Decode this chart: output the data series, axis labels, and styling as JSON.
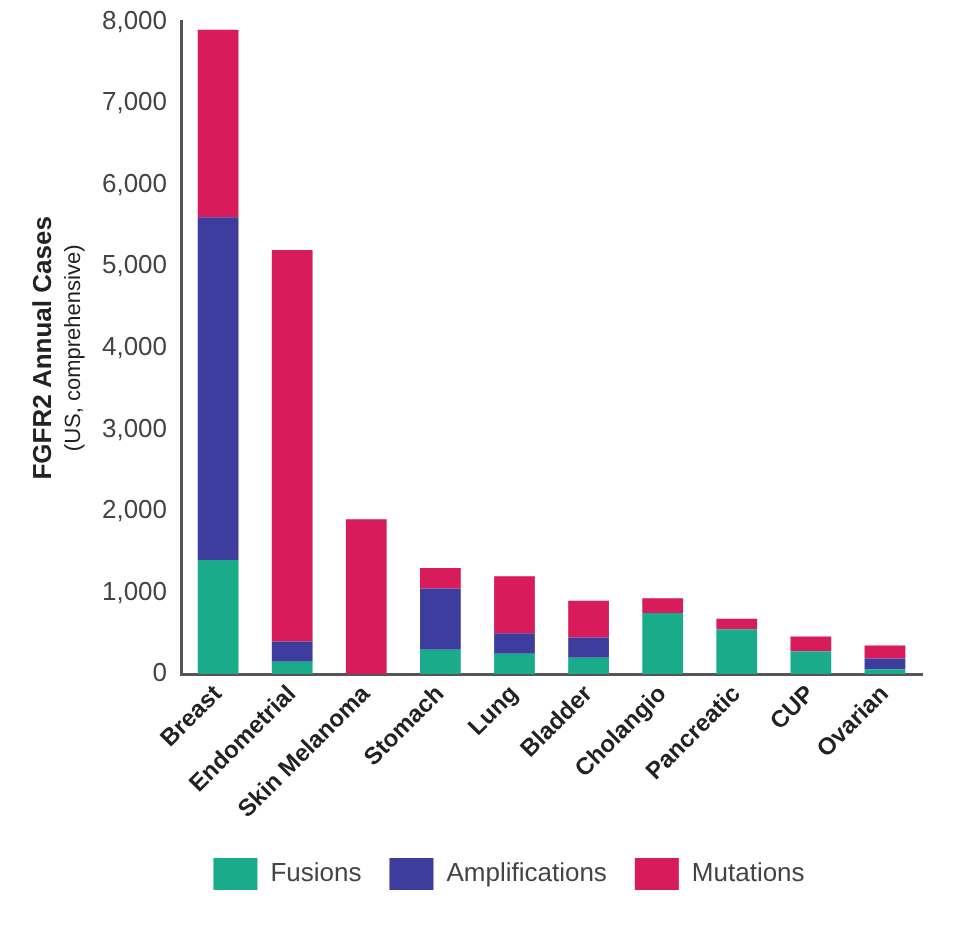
{
  "chart_data": {
    "type": "bar",
    "stacked": true,
    "ylabel": "FGFR2 Annual Cases\n(US, comprehensive)",
    "categories": [
      "Breast",
      "Endometrial",
      "Skin Melanoma",
      "Stomach",
      "Lung",
      "Bladder",
      "Cholangio",
      "Pancreatic",
      "CUP",
      "Ovarian"
    ],
    "series": [
      {
        "name": "Fusions",
        "color": "#1aab8a",
        "values": [
          1400,
          150,
          0,
          300,
          250,
          200,
          750,
          550,
          280,
          60
        ]
      },
      {
        "name": "Amplifications",
        "color": "#3d3d9e",
        "values": [
          4200,
          250,
          0,
          750,
          250,
          250,
          0,
          0,
          0,
          130
        ]
      },
      {
        "name": "Mutations",
        "color": "#d81b5b",
        "values": [
          2300,
          4800,
          1900,
          250,
          700,
          450,
          180,
          130,
          180,
          160
        ]
      }
    ],
    "ylim": [
      0,
      8000
    ],
    "yticks": [
      {
        "value": 0,
        "label": "0"
      },
      {
        "value": 1000,
        "label": "1,000"
      },
      {
        "value": 2000,
        "label": "2,000"
      },
      {
        "value": 3000,
        "label": "3,000"
      },
      {
        "value": 4000,
        "label": "4,000"
      },
      {
        "value": 5000,
        "label": "5,000"
      },
      {
        "value": 6000,
        "label": "6,000"
      },
      {
        "value": 7000,
        "label": "7,000"
      },
      {
        "value": 8000,
        "label": "8,000"
      }
    ],
    "grid": false,
    "legend": "bottom"
  }
}
